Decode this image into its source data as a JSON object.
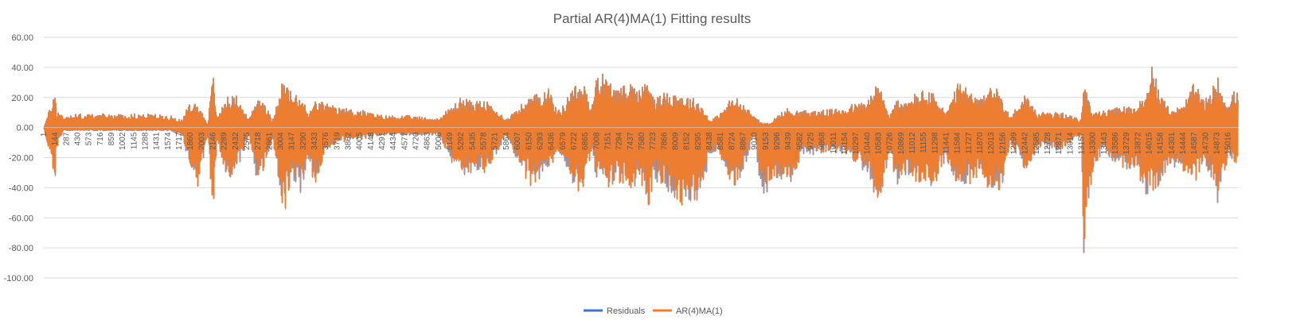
{
  "chart_data": {
    "type": "line",
    "title": "Partial AR(4)MA(1) Fitting results",
    "xlabel": "",
    "ylabel": "",
    "ylim": [
      -100,
      60
    ],
    "yticks": [
      "60.00",
      "40.00",
      "20.00",
      "0.00",
      "-20.00",
      "-40.00",
      "-60.00",
      "-80.00",
      "-100.00"
    ],
    "ytick_values": [
      60,
      40,
      20,
      0,
      -20,
      -40,
      -60,
      -80,
      -100
    ],
    "xlim": [
      1,
      15140
    ],
    "xticks": [
      1,
      144,
      287,
      430,
      573,
      716,
      859,
      1002,
      1145,
      1288,
      1431,
      1574,
      1717,
      1860,
      2003,
      2146,
      2289,
      2432,
      2575,
      2718,
      2861,
      3004,
      3147,
      3290,
      3433,
      3576,
      3719,
      3862,
      4005,
      4148,
      4291,
      4434,
      4577,
      4720,
      4863,
      5006,
      5149,
      5292,
      5435,
      5578,
      5721,
      5864,
      6007,
      6150,
      6293,
      6436,
      6579,
      6722,
      6865,
      7008,
      7151,
      7294,
      7437,
      7580,
      7723,
      7866,
      8009,
      8152,
      8295,
      8438,
      8581,
      8724,
      8867,
      9010,
      9153,
      9296,
      9439,
      9582,
      9725,
      9868,
      10011,
      10154,
      10297,
      10440,
      10583,
      10726,
      10869,
      11012,
      11155,
      11298,
      11441,
      11584,
      11727,
      11870,
      12013,
      12156,
      12299,
      12442,
      12585,
      12728,
      12871,
      13014,
      13157,
      13300,
      13443,
      13586,
      13729,
      13872,
      14015,
      14158,
      14301,
      14444,
      14587,
      14730,
      14873,
      15016
    ],
    "grid": true,
    "legend_position": "bottom",
    "series": [
      {
        "name": "Residuals",
        "color": "#4472c4",
        "envelope": {
          "x": [
            1,
            150,
            160,
            250,
            450,
            700,
            1000,
            1300,
            1600,
            1760,
            1830,
            1880,
            1950,
            2080,
            2146,
            2200,
            2300,
            2450,
            2600,
            2700,
            2800,
            2900,
            3004,
            3050,
            3150,
            3290,
            3350,
            3433,
            3576,
            3720,
            4005,
            4291,
            4600,
            5000,
            5292,
            5400,
            5600,
            5864,
            6150,
            6250,
            6400,
            6500,
            6600,
            6700,
            6865,
            6950,
            7008,
            7100,
            7294,
            7437,
            7580,
            7650,
            7750,
            7866,
            8000,
            8152,
            8300,
            8450,
            8550,
            8724,
            8800,
            8900,
            9010,
            9100,
            9200,
            9300,
            9439,
            9600,
            10000,
            10440,
            10583,
            10726,
            10800,
            10900,
            11100,
            11298,
            11441,
            11600,
            11870,
            12013,
            12156,
            12250,
            12442,
            12600,
            12900,
            13157,
            13180,
            13300,
            13443,
            13600,
            13872,
            13950,
            14015,
            14050,
            14158,
            14300,
            14444,
            14587,
            14700,
            14780,
            14873,
            15016,
            15100
          ],
          "high": [
            0,
            25,
            12,
            8,
            9,
            9,
            9,
            9,
            8,
            5,
            15,
            17,
            16,
            3,
            36,
            6,
            20,
            21,
            5,
            21,
            18,
            4,
            30,
            32,
            22,
            20,
            8,
            18,
            17,
            13,
            12,
            8,
            8,
            6,
            20,
            18,
            18,
            6,
            20,
            22,
            27,
            12,
            15,
            29,
            27,
            13,
            39,
            35,
            25,
            31,
            25,
            37,
            20,
            23,
            24,
            21,
            18,
            5,
            8,
            20,
            19,
            13,
            8,
            3,
            3,
            8,
            13,
            11,
            12,
            18,
            30,
            8,
            20,
            15,
            25,
            22,
            10,
            30,
            18,
            31,
            20,
            7,
            23,
            10,
            10,
            5,
            31,
            11,
            11,
            13,
            15,
            25,
            23,
            43,
            20,
            13,
            14,
            30,
            19,
            20,
            35,
            15,
            25
          ],
          "low": [
            0,
            -36,
            -15,
            -2,
            -2,
            -2,
            -2,
            -2,
            -2,
            -6,
            -25,
            -44,
            -40,
            -5,
            -59,
            -10,
            -35,
            -30,
            -5,
            -36,
            -29,
            -8,
            -45,
            -56,
            -35,
            -45,
            -20,
            -38,
            -15,
            -10,
            -8,
            -5,
            -5,
            -5,
            -35,
            -30,
            -30,
            -6,
            -38,
            -40,
            -33,
            -15,
            -25,
            -44,
            -40,
            -15,
            -38,
            -40,
            -38,
            -40,
            -37,
            -56,
            -35,
            -40,
            -53,
            -50,
            -50,
            -20,
            -15,
            -40,
            -40,
            -25,
            -5,
            -49,
            -40,
            -35,
            -40,
            -20,
            -15,
            -30,
            -55,
            -15,
            -40,
            -30,
            -40,
            -38,
            -20,
            -40,
            -35,
            -42,
            -40,
            -10,
            -28,
            -15,
            -15,
            -5,
            -91,
            -30,
            -15,
            -25,
            -30,
            -47,
            -45,
            -48,
            -35,
            -25,
            -30,
            -40,
            -25,
            -30,
            -52,
            -20,
            -24
          ]
        }
      },
      {
        "name": "AR(4)MA(1)",
        "color": "#ed7d31",
        "envelope": {
          "x": [
            1,
            150,
            160,
            250,
            450,
            700,
            1000,
            1300,
            1600,
            1760,
            1830,
            1880,
            1950,
            2080,
            2146,
            2200,
            2300,
            2450,
            2600,
            2700,
            2800,
            2900,
            3004,
            3050,
            3150,
            3290,
            3350,
            3433,
            3576,
            3720,
            4005,
            4291,
            4600,
            5000,
            5292,
            5400,
            5600,
            5864,
            6150,
            6250,
            6400,
            6500,
            6600,
            6700,
            6865,
            6950,
            7008,
            7100,
            7294,
            7437,
            7580,
            7650,
            7750,
            7866,
            8000,
            8152,
            8300,
            8450,
            8550,
            8724,
            8800,
            8900,
            9010,
            9100,
            9200,
            9300,
            9439,
            9600,
            10000,
            10440,
            10583,
            10726,
            10800,
            10900,
            11100,
            11298,
            11441,
            11600,
            11870,
            12013,
            12156,
            12250,
            12442,
            12600,
            12900,
            13157,
            13180,
            13300,
            13443,
            13600,
            13872,
            13950,
            14015,
            14050,
            14158,
            14300,
            14444,
            14587,
            14700,
            14780,
            14873,
            15016,
            15100
          ],
          "high": [
            0,
            25,
            12,
            8,
            9,
            9,
            9,
            9,
            8,
            5,
            15,
            17,
            16,
            3,
            37,
            6,
            20,
            21,
            5,
            21,
            18,
            4,
            31,
            32,
            22,
            20,
            8,
            18,
            17,
            13,
            12,
            8,
            8,
            6,
            20,
            18,
            18,
            6,
            20,
            22,
            28,
            12,
            15,
            29,
            27,
            13,
            39,
            35,
            25,
            31,
            25,
            37,
            20,
            23,
            24,
            21,
            18,
            5,
            8,
            20,
            19,
            13,
            8,
            3,
            3,
            8,
            13,
            11,
            12,
            18,
            30,
            8,
            20,
            15,
            25,
            22,
            10,
            31,
            18,
            31,
            20,
            7,
            23,
            10,
            10,
            5,
            31,
            11,
            11,
            13,
            15,
            25,
            23,
            43,
            20,
            13,
            14,
            30,
            19,
            20,
            35,
            15,
            25
          ],
          "low": [
            0,
            -37,
            -15,
            -2,
            -2,
            -2,
            -2,
            -2,
            -2,
            -6,
            -25,
            -45,
            -40,
            -5,
            -59,
            -10,
            -35,
            -30,
            -5,
            -36,
            -29,
            -8,
            -45,
            -57,
            -35,
            -46,
            -20,
            -39,
            -15,
            -10,
            -8,
            -5,
            -5,
            -5,
            -36,
            -30,
            -30,
            -6,
            -38,
            -40,
            -33,
            -15,
            -25,
            -44,
            -40,
            -15,
            -38,
            -40,
            -38,
            -40,
            -37,
            -57,
            -35,
            -40,
            -54,
            -50,
            -51,
            -20,
            -15,
            -40,
            -40,
            -25,
            -5,
            -48,
            -40,
            -35,
            -40,
            -20,
            -15,
            -30,
            -56,
            -15,
            -40,
            -30,
            -40,
            -38,
            -20,
            -40,
            -35,
            -42,
            -41,
            -10,
            -28,
            -15,
            -15,
            -5,
            -91,
            -30,
            -15,
            -25,
            -30,
            -48,
            -45,
            -49,
            -35,
            -25,
            -30,
            -40,
            -25,
            -30,
            -52,
            -20,
            -25
          ]
        }
      }
    ]
  }
}
